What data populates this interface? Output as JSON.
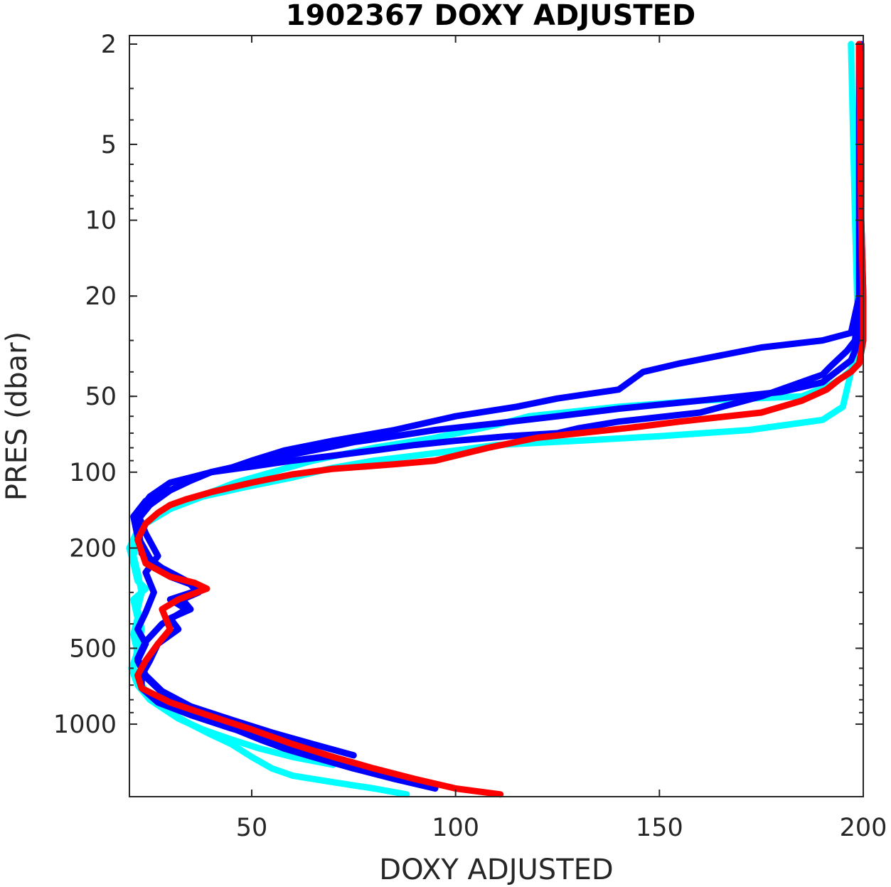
{
  "chart_data": {
    "type": "line",
    "title": "1902367  DOXY ADJUSTED",
    "xlabel": "DOXY ADJUSTED",
    "ylabel": "PRES (dbar)",
    "xlim": [
      20,
      200
    ],
    "ylim": [
      1.85,
      1940
    ],
    "yscale": "log",
    "yreversed": true,
    "xticks": [
      50,
      100,
      150,
      200
    ],
    "yticks": [
      2,
      5,
      10,
      20,
      50,
      100,
      200,
      500,
      1000
    ],
    "grid": false,
    "legend": "none",
    "series": [
      {
        "color": "#00FFFF",
        "x": [
          197,
          198,
          198.5,
          199,
          198,
          195,
          192,
          185,
          160,
          140,
          118,
          110,
          95,
          80,
          65,
          55,
          46,
          40,
          30,
          26,
          22,
          20,
          21,
          22,
          24,
          21,
          22,
          21,
          22,
          20.5,
          22,
          25,
          30,
          35,
          40,
          45,
          50,
          55,
          60,
          70,
          80,
          88
        ],
        "y": [
          2,
          10,
          20,
          30,
          38,
          42,
          45,
          50,
          52,
          55,
          60,
          65,
          73,
          80,
          90,
          100,
          110,
          120,
          135,
          150,
          170,
          200,
          230,
          270,
          290,
          320,
          380,
          440,
          520,
          600,
          700,
          800,
          900,
          1000,
          1100,
          1200,
          1350,
          1500,
          1600,
          1700,
          1800,
          1900
        ]
      },
      {
        "color": "#00FFFF",
        "x": [
          199,
          199,
          199,
          198,
          197,
          195,
          190,
          172,
          150,
          130,
          110,
          100,
          90,
          80,
          70,
          60,
          48,
          38,
          30,
          24,
          22,
          21,
          22,
          23,
          22,
          23,
          22,
          21,
          23,
          26,
          32,
          38,
          45,
          52,
          60,
          70
        ],
        "y": [
          2,
          10,
          20,
          30,
          40,
          55,
          62,
          68,
          72,
          75,
          78,
          82,
          86,
          90,
          96,
          105,
          115,
          125,
          140,
          160,
          185,
          215,
          250,
          300,
          350,
          420,
          500,
          600,
          700,
          820,
          950,
          1050,
          1150,
          1250,
          1350,
          1450
        ]
      },
      {
        "color": "#0000FF",
        "x": [
          199,
          199,
          199,
          197,
          190,
          175,
          155,
          146,
          140,
          125,
          115,
          100,
          85,
          70,
          58,
          50,
          45,
          40,
          36,
          30,
          25,
          22,
          24,
          27,
          24,
          26,
          24,
          22,
          24,
          22,
          24,
          28,
          34,
          40,
          46,
          52,
          58,
          65,
          75,
          85,
          95
        ],
        "y": [
          2,
          10,
          20,
          28,
          30,
          32,
          37,
          40,
          47,
          51,
          55,
          60,
          68,
          75,
          82,
          90,
          96,
          100,
          104,
          110,
          125,
          145,
          175,
          215,
          250,
          300,
          360,
          420,
          480,
          560,
          650,
          750,
          850,
          950,
          1050,
          1150,
          1250,
          1350,
          1500,
          1650,
          1800
        ]
      },
      {
        "color": "#0000FF",
        "x": [
          199.5,
          199.5,
          200,
          199,
          197,
          190,
          180,
          160,
          140,
          125,
          110,
          95,
          85,
          75,
          70,
          60,
          50,
          40,
          35,
          30,
          25,
          22,
          22.5,
          23,
          28,
          34,
          37,
          33,
          35,
          30,
          32,
          27,
          25,
          23,
          23,
          27,
          35,
          45,
          55,
          65
        ],
        "y": [
          2,
          10,
          20,
          30,
          36,
          44,
          48,
          52,
          56,
          60,
          64,
          68,
          72,
          76,
          79,
          85,
          92,
          100,
          108,
          118,
          135,
          155,
          180,
          210,
          240,
          270,
          300,
          320,
          350,
          380,
          420,
          480,
          560,
          640,
          720,
          820,
          920,
          1040,
          1160,
          1280
        ]
      },
      {
        "color": "#0000FF",
        "x": [
          199,
          199,
          199,
          198,
          196,
          192,
          190,
          175,
          160,
          140,
          130,
          125,
          113,
          100,
          90,
          80,
          70,
          60,
          50,
          40,
          35,
          30,
          24,
          21,
          22,
          25,
          30,
          38,
          30,
          34,
          28,
          24,
          22,
          24,
          28,
          35,
          45,
          55,
          65,
          75
        ],
        "y": [
          2,
          10,
          20,
          30,
          33,
          38,
          41,
          50,
          58,
          63,
          67,
          70,
          72,
          75,
          78,
          82,
          86,
          90,
          95,
          100,
          108,
          118,
          130,
          150,
          180,
          220,
          260,
          290,
          320,
          350,
          400,
          470,
          550,
          640,
          740,
          850,
          960,
          1080,
          1200,
          1330
        ]
      },
      {
        "color": "#FF0000",
        "x": [
          199,
          199.5,
          200,
          200,
          199,
          197,
          194,
          191,
          185,
          175,
          155,
          145,
          120,
          108,
          100,
          95,
          85,
          70,
          60,
          50,
          40,
          34,
          30,
          27,
          24,
          22,
          24,
          30,
          36,
          39,
          32,
          28,
          30,
          27,
          24,
          22,
          23,
          30,
          40,
          50,
          60,
          70,
          80,
          90,
          100,
          111
        ],
        "y": [
          2,
          10,
          20,
          30,
          37,
          40,
          43,
          47,
          52,
          58,
          63,
          66,
          73,
          80,
          86,
          90,
          93,
          97,
          102,
          110,
          120,
          128,
          135,
          145,
          160,
          185,
          230,
          260,
          275,
          290,
          320,
          350,
          420,
          480,
          560,
          640,
          720,
          820,
          930,
          1050,
          1200,
          1350,
          1500,
          1650,
          1800,
          1900
        ]
      }
    ]
  }
}
